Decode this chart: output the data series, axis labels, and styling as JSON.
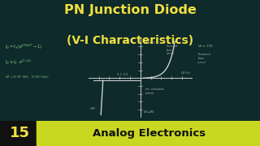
{
  "bg_color": "#0e2a2a",
  "title_line1": "PN Junction Diode",
  "title_line2": "(V-I Characteristics)",
  "title_color": "#f0e040",
  "bottom_bg": "#c8d820",
  "bottom_text": "Analog Electronics",
  "bottom_num": "15",
  "bottom_num_color": "#f0e040",
  "bottom_num_bg": "#111111",
  "axis_color": "#cccccc",
  "curve_color": "#cccccc",
  "annot_color": "#aaaaaa",
  "left_annot_color": "#88cc88",
  "title_fontsize": 11.5,
  "subtitle_fontsize": 10.0
}
